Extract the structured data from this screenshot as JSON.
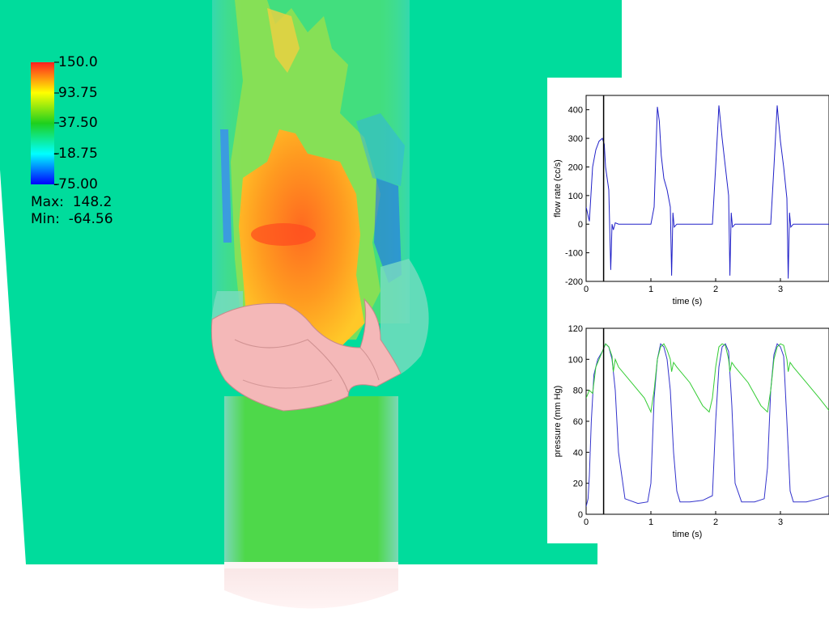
{
  "colormap": {
    "stops": [
      "#ff2020",
      "#ffff00",
      "#1ed01e",
      "#00ffff",
      "#0000ff"
    ],
    "tick_labels": [
      "150.0",
      "93.75",
      "37.50",
      "-18.75",
      "-75.00"
    ],
    "max_label": "Max:",
    "max_value": "148.2",
    "min_label": "Min:",
    "min_value": "-64.56"
  },
  "colors": {
    "background_field": "#00dc9c",
    "jet_core": "#ff8a20",
    "valve": "#f0b4b4",
    "flow_series": "#2020c8",
    "pressure_series_a": "#3333cc",
    "pressure_series_b": "#33cc33",
    "time_marker": "#000000"
  },
  "chart_data": [
    {
      "type": "line",
      "xlabel": "time (s)",
      "ylabel": "flow rate (cc/s)",
      "xlim": [
        0,
        3.75
      ],
      "ylim": [
        -200,
        450
      ],
      "xticks": [
        "0",
        "1",
        "2",
        "3"
      ],
      "yticks": [
        "-200",
        "-100",
        "0",
        "100",
        "200",
        "300",
        "400"
      ],
      "time_marker": 0.27,
      "series": [
        {
          "x": [
            0,
            0.05,
            0.1,
            0.15,
            0.2,
            0.25,
            0.28,
            0.3,
            0.35,
            0.38,
            0.4,
            0.42,
            0.45,
            0.5,
            0.6,
            0.8,
            1.0,
            1.05,
            1.1,
            1.13,
            1.16,
            1.2,
            1.25,
            1.3,
            1.32,
            1.34,
            1.36,
            1.4,
            1.5,
            1.8,
            1.95,
            2.0,
            2.05,
            2.1,
            2.15,
            2.2,
            2.22,
            2.24,
            2.26,
            2.3,
            2.4,
            2.7,
            2.85,
            2.9,
            2.95,
            3.0,
            3.05,
            3.1,
            3.12,
            3.14,
            3.16,
            3.2,
            3.3,
            3.75
          ],
          "y": [
            60,
            10,
            200,
            260,
            290,
            300,
            280,
            200,
            120,
            -160,
            0,
            -20,
            5,
            0,
            0,
            0,
            0,
            60,
            410,
            360,
            240,
            160,
            120,
            60,
            -180,
            40,
            -10,
            0,
            0,
            0,
            0,
            200,
            415,
            300,
            200,
            100,
            -180,
            40,
            -10,
            0,
            0,
            0,
            0,
            200,
            415,
            290,
            200,
            90,
            -190,
            40,
            -10,
            0,
            0,
            0
          ]
        }
      ]
    },
    {
      "type": "line",
      "xlabel": "time (s)",
      "ylabel": "pressure (mm Hg)",
      "xlim": [
        0,
        3.75
      ],
      "ylim": [
        0,
        120
      ],
      "xticks": [
        "0",
        "1",
        "2",
        "3"
      ],
      "yticks": [
        "0",
        "20",
        "40",
        "60",
        "80",
        "100",
        "120"
      ],
      "time_marker": 0.27,
      "series": [
        {
          "x": [
            0,
            0.03,
            0.05,
            0.08,
            0.12,
            0.18,
            0.25,
            0.3,
            0.35,
            0.4,
            0.45,
            0.5,
            0.6,
            0.8,
            0.95,
            1.0,
            1.05,
            1.1,
            1.15,
            1.2,
            1.25,
            1.3,
            1.35,
            1.4,
            1.45,
            1.6,
            1.8,
            1.95,
            2.0,
            2.05,
            2.1,
            2.15,
            2.2,
            2.25,
            2.3,
            2.4,
            2.6,
            2.75,
            2.8,
            2.85,
            2.9,
            2.95,
            3.0,
            3.05,
            3.1,
            3.15,
            3.2,
            3.4,
            3.6,
            3.75
          ],
          "y": [
            5,
            10,
            25,
            60,
            90,
            100,
            105,
            110,
            108,
            100,
            80,
            40,
            10,
            7,
            8,
            20,
            75,
            100,
            110,
            108,
            100,
            80,
            40,
            15,
            8,
            8,
            9,
            12,
            60,
            95,
            108,
            110,
            105,
            70,
            20,
            8,
            8,
            10,
            30,
            80,
            103,
            110,
            108,
            102,
            60,
            15,
            8,
            8,
            10,
            12
          ]
        },
        {
          "x": [
            0,
            0.05,
            0.1,
            0.15,
            0.2,
            0.25,
            0.3,
            0.35,
            0.4,
            0.42,
            0.45,
            0.5,
            0.7,
            0.9,
            1.0,
            1.05,
            1.1,
            1.15,
            1.2,
            1.25,
            1.3,
            1.32,
            1.35,
            1.4,
            1.6,
            1.8,
            1.9,
            1.95,
            2.0,
            2.05,
            2.1,
            2.15,
            2.2,
            2.22,
            2.25,
            2.3,
            2.5,
            2.7,
            2.8,
            2.85,
            2.9,
            2.95,
            3.0,
            3.05,
            3.1,
            3.12,
            3.15,
            3.2,
            3.4,
            3.6,
            3.75
          ],
          "y": [
            75,
            80,
            78,
            95,
            100,
            105,
            110,
            108,
            102,
            92,
            100,
            95,
            85,
            75,
            66,
            80,
            100,
            108,
            110,
            106,
            100,
            92,
            98,
            95,
            85,
            70,
            66,
            75,
            95,
            108,
            110,
            109,
            100,
            92,
            98,
            95,
            85,
            70,
            66,
            80,
            100,
            108,
            110,
            109,
            100,
            92,
            98,
            95,
            85,
            75,
            67
          ]
        }
      ]
    }
  ]
}
